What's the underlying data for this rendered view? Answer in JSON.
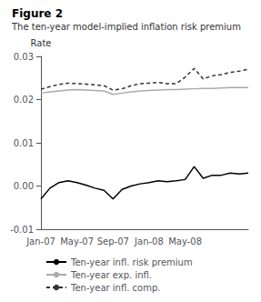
{
  "chart_data": {
    "type": "line",
    "title": "Figure 2",
    "subtitle": "The ten-year model-implied inflation risk premium",
    "y_label": "Rate",
    "categories": [
      "Jan-07",
      null,
      null,
      null,
      "May-07",
      null,
      null,
      null,
      "Sep-07",
      null,
      null,
      null,
      "Jan-08",
      null,
      null,
      null,
      "May-08",
      null,
      null,
      null,
      null,
      null,
      null,
      null
    ],
    "series": [
      {
        "name": "Ten-year infl. risk premium",
        "color": "#000000",
        "line_style": "solid",
        "values": [
          -0.003,
          -0.0005,
          0.0008,
          0.0012,
          0.0008,
          0.0002,
          -0.0005,
          -0.001,
          -0.003,
          -0.0008,
          0.0,
          0.0005,
          0.0008,
          0.0012,
          0.001,
          0.0012,
          0.0015,
          0.0045,
          0.0018,
          0.0025,
          0.0025,
          0.003,
          0.0028,
          0.003
        ]
      },
      {
        "name": "Ten-year exp. infl.",
        "color": "#aaaaaa",
        "line_style": "solid",
        "values": [
          0.0215,
          0.0218,
          0.022,
          0.0222,
          0.0223,
          0.0222,
          0.0221,
          0.022,
          0.0212,
          0.0215,
          0.0218,
          0.022,
          0.0221,
          0.0222,
          0.0223,
          0.0223,
          0.0224,
          0.0225,
          0.0226,
          0.0226,
          0.0227,
          0.0228,
          0.0228,
          0.0228
        ]
      },
      {
        "name": "Ten-year infl. comp.",
        "color": "#333333",
        "line_style": "dashed",
        "values": [
          0.0224,
          0.023,
          0.0235,
          0.0238,
          0.0237,
          0.0236,
          0.0234,
          0.0232,
          0.0222,
          0.0225,
          0.0232,
          0.0237,
          0.0238,
          0.024,
          0.0237,
          0.0237,
          0.0252,
          0.0272,
          0.0248,
          0.0255,
          0.0258,
          0.0263,
          0.0266,
          0.027
        ]
      }
    ],
    "ylim": [
      -0.01,
      0.03
    ],
    "yticks": [
      -0.01,
      {
        "value": 0,
        "label": "0.00"
      },
      0.01,
      0.02,
      0.03
    ],
    "grid": false,
    "legend": "bottom"
  }
}
